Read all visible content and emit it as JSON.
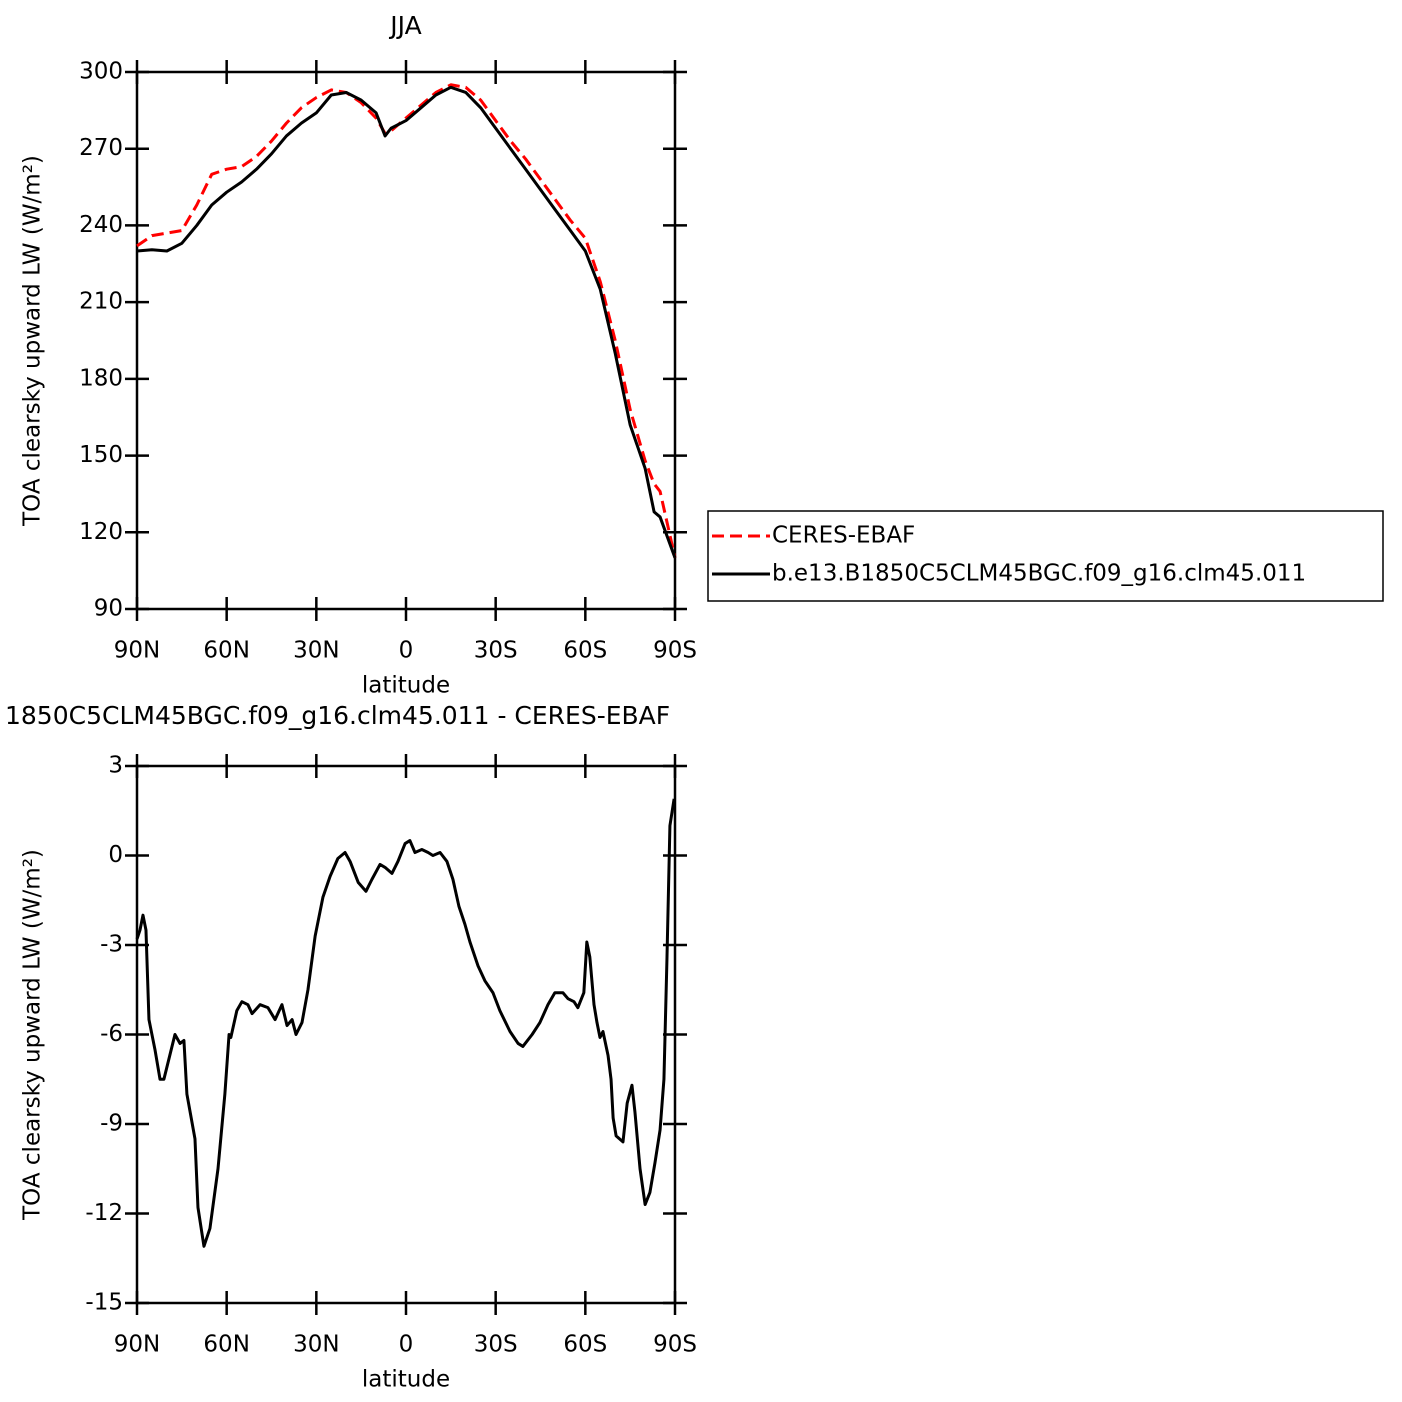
{
  "chart_data": [
    {
      "type": "line",
      "title": "JJA",
      "xlabel": "latitude",
      "ylabel": "TOA clearsky upward LW (W/m²)",
      "xlim": [
        90,
        -90
      ],
      "xticks": [
        {
          "value": 90,
          "label": "90N"
        },
        {
          "value": 60,
          "label": "60N"
        },
        {
          "value": 30,
          "label": "30N"
        },
        0,
        {
          "value": -30,
          "label": "30S"
        },
        {
          "value": -60,
          "label": "60S"
        },
        {
          "value": -90,
          "label": "90S"
        }
      ],
      "ylim": [
        90,
        300
      ],
      "yticks": [
        90,
        120,
        150,
        180,
        210,
        240,
        270,
        300
      ],
      "legend": "right",
      "x": [
        90,
        85,
        80,
        75,
        70,
        65,
        60,
        55,
        50,
        45,
        40,
        35,
        30,
        25,
        20,
        15,
        10,
        7,
        5,
        0,
        -5,
        -10,
        -15,
        -20,
        -25,
        -30,
        -35,
        -40,
        -45,
        -50,
        -55,
        -60,
        -65,
        -70,
        -75,
        -80,
        -83,
        -85,
        -90
      ],
      "series": [
        {
          "name": "CERES-EBAF",
          "color": "#ff0000",
          "dashed": true,
          "values": [
            232,
            236,
            237,
            238,
            248,
            260,
            262,
            263,
            267,
            273,
            280,
            286,
            290,
            293,
            292,
            288,
            282,
            276,
            277,
            282,
            287,
            292,
            295,
            294,
            289,
            281,
            273,
            266,
            258,
            250,
            242,
            235,
            218,
            195,
            168,
            148,
            139,
            136,
            110
          ]
        },
        {
          "name": "b.e13.B1850C5CLM45BGC.f09_g16.clm45.011",
          "color": "#000000",
          "dashed": false,
          "values": [
            230,
            230.5,
            230,
            233,
            240,
            248,
            253,
            257,
            262,
            268,
            275,
            280,
            284,
            291,
            292,
            289,
            284,
            275,
            278,
            281,
            286,
            291,
            294,
            292,
            286,
            278,
            270,
            262,
            254,
            246,
            238,
            230,
            215,
            190,
            162,
            145,
            128,
            126,
            110
          ]
        }
      ]
    },
    {
      "type": "line",
      "title": "1850C5CLM45BGC.f09_g16.clm45.011 - CERES-EBAF",
      "xlabel": "latitude",
      "ylabel": "TOA clearsky upward LW (W/m²)",
      "xlim": [
        90,
        -90
      ],
      "xticks": [
        {
          "value": 90,
          "label": "90N"
        },
        {
          "value": 60,
          "label": "60N"
        },
        {
          "value": 30,
          "label": "30N"
        },
        0,
        {
          "value": -30,
          "label": "30S"
        },
        {
          "value": -60,
          "label": "60S"
        },
        {
          "value": -90,
          "label": "90S"
        }
      ],
      "ylim": [
        -15,
        3
      ],
      "yticks": [
        -15,
        -12,
        -9,
        -6,
        -3,
        0,
        3
      ],
      "series": [
        {
          "color": "#000000",
          "dashed": false,
          "x": [
            90,
            89,
            88,
            87,
            86,
            85,
            84,
            82.3,
            81,
            77.3,
            75.6,
            74.3,
            73.3,
            70.6,
            69.6,
            67.6,
            65.6,
            62.9,
            60.6,
            59.2,
            58.6,
            56.6,
            54.9,
            52.9,
            51.5,
            48.8,
            46.2,
            43.8,
            41.5,
            39.8,
            38.1,
            36.8,
            34.8,
            32.8,
            30.4,
            27.8,
            25.4,
            22.8,
            20.4,
            18.7,
            16,
            13.4,
            11.4,
            8.7,
            7,
            4.7,
            2.7,
            0.3,
            -1.3,
            -3,
            -5.3,
            -7.4,
            -9,
            -11.4,
            -13.7,
            -15.7,
            -17.7,
            -19.7,
            -21.4,
            -24.1,
            -26.4,
            -29.1,
            -31.4,
            -34.8,
            -37.5,
            -39.1,
            -42.2,
            -44.8,
            -47.5,
            -49.8,
            -52.5,
            -54.2,
            -56.2,
            -57.5,
            -59.5,
            -60.5,
            -61.5,
            -62.9,
            -63.9,
            -64.9,
            -65.9,
            -67.6,
            -68.6,
            -69.3,
            -70.3,
            -72.6,
            -74,
            -75.6,
            -76.6,
            -78.3,
            -80,
            -81.6,
            -83.3,
            -85,
            -86.3,
            -87.3,
            -88.3,
            -89.7
          ],
          "values": [
            -2.8,
            -2.5,
            -2,
            -2.5,
            -5.5,
            -6,
            -6.5,
            -7.5,
            -7.5,
            -6,
            -6.3,
            -6.2,
            -8,
            -9.5,
            -11.8,
            -13.1,
            -12.5,
            -10.5,
            -8,
            -6,
            -6.1,
            -5.2,
            -4.9,
            -5,
            -5.3,
            -5,
            -5.1,
            -5.5,
            -5,
            -5.7,
            -5.5,
            -6,
            -5.6,
            -4.5,
            -2.7,
            -1.4,
            -0.7,
            -0.1,
            0.1,
            -0.2,
            -0.9,
            -1.2,
            -0.8,
            -0.3,
            -0.4,
            -0.6,
            -0.2,
            0.4,
            0.5,
            0.1,
            0.2,
            0.1,
            0,
            0.1,
            -0.2,
            -0.8,
            -1.7,
            -2.3,
            -2.9,
            -3.7,
            -4.2,
            -4.6,
            -5.2,
            -5.9,
            -6.3,
            -6.4,
            -6,
            -5.6,
            -5,
            -4.6,
            -4.6,
            -4.8,
            -4.9,
            -5.1,
            -4.6,
            -2.9,
            -3.4,
            -5,
            -5.6,
            -6.1,
            -5.9,
            -6.7,
            -7.5,
            -8.8,
            -9.4,
            -9.6,
            -8.3,
            -7.7,
            -8.6,
            -10.5,
            -11.7,
            -11.3,
            -10.3,
            -9.2,
            -7.5,
            -3.5,
            1,
            1.9
          ]
        }
      ]
    }
  ]
}
